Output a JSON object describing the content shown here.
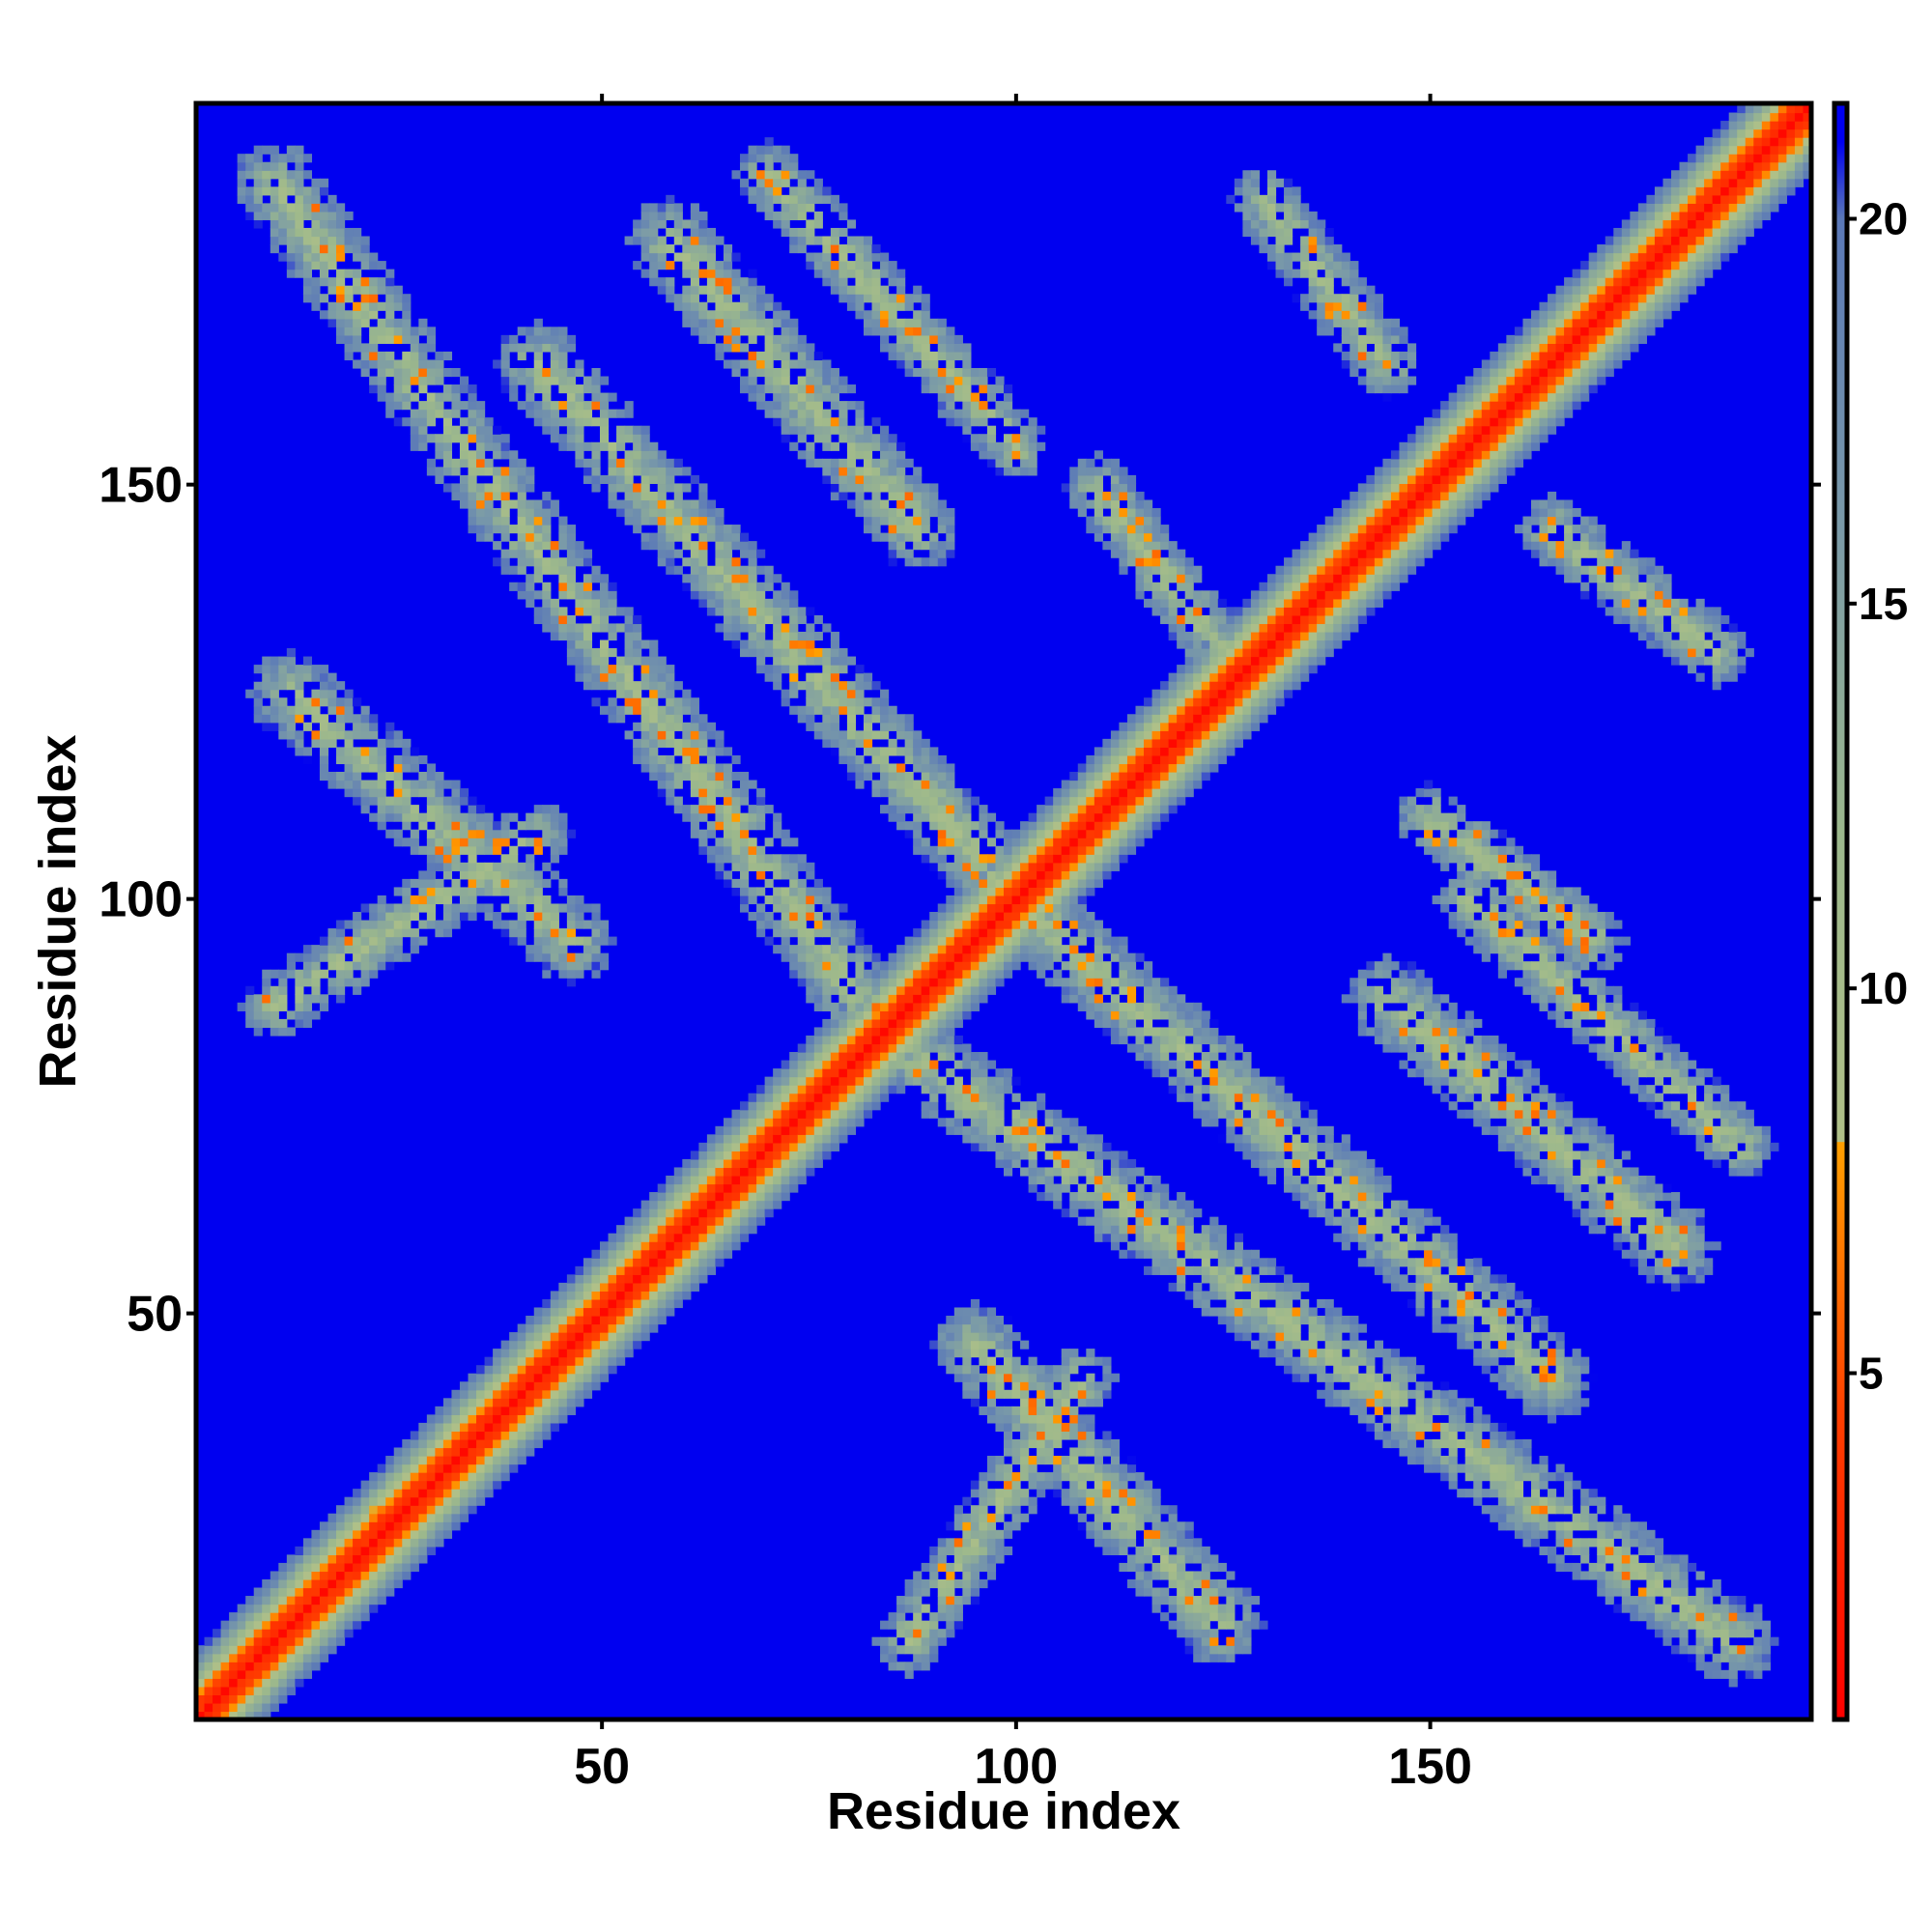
{
  "chart_data": {
    "type": "heatmap",
    "title": "",
    "xlabel": "Residue index",
    "ylabel": "Residue index",
    "n_residues": 196,
    "xlim": [
      1,
      196
    ],
    "ylim": [
      1,
      196
    ],
    "x_ticks": [
      50,
      100,
      150
    ],
    "y_ticks": [
      50,
      100,
      150
    ],
    "colorbar": {
      "range": [
        0.5,
        21.5
      ],
      "ticks": [
        5,
        10,
        15,
        20
      ],
      "stops": [
        {
          "value": 0.5,
          "color": "#ff0000"
        },
        {
          "value": 4.5,
          "color": "#ff4000"
        },
        {
          "value": 8.0,
          "color": "#ffa000"
        },
        {
          "value": 8.01,
          "color": "#b0c088"
        },
        {
          "value": 12.0,
          "color": "#9cb88c"
        },
        {
          "value": 16.0,
          "color": "#7a9aa8"
        },
        {
          "value": 20.0,
          "color": "#5a78b8"
        },
        {
          "value": 21.0,
          "color": "#0000f0"
        }
      ]
    },
    "background_color": "#0000f0",
    "diagonal": {
      "description_values": {
        "center": 1.5,
        "near": 4.0,
        "band_halfwidth_residues": 8
      }
    },
    "contact_bands": [
      {
        "orientation": "anti",
        "from": [
          10,
          187
        ],
        "to": [
          83,
          85
        ],
        "halfwidth": 5
      },
      {
        "orientation": "anti",
        "from": [
          85,
          83
        ],
        "to": [
          187,
          10
        ],
        "halfwidth": 5
      },
      {
        "orientation": "anti",
        "from": [
          12,
          125
        ],
        "to": [
          46,
          95
        ],
        "halfwidth": 5
      },
      {
        "orientation": "anti",
        "from": [
          95,
          46
        ],
        "to": [
          125,
          12
        ],
        "halfwidth": 5
      },
      {
        "orientation": "anti",
        "from": [
          42,
          165
        ],
        "to": [
          100,
          100
        ],
        "halfwidth": 5
      },
      {
        "orientation": "anti",
        "from": [
          100,
          100
        ],
        "to": [
          165,
          42
        ],
        "halfwidth": 5
      },
      {
        "orientation": "par",
        "from": [
          58,
          180
        ],
        "to": [
          88,
          145
        ],
        "halfwidth": 5
      },
      {
        "orientation": "par",
        "from": [
          145,
          88
        ],
        "to": [
          180,
          58
        ],
        "halfwidth": 5
      },
      {
        "orientation": "par",
        "from": [
          10,
          87
        ],
        "to": [
          42,
          108
        ],
        "halfwidth": 4
      },
      {
        "orientation": "par",
        "from": [
          87,
          10
        ],
        "to": [
          108,
          42
        ],
        "halfwidth": 4
      },
      {
        "orientation": "par",
        "from": [
          70,
          188
        ],
        "to": [
          100,
          155
        ],
        "halfwidth": 4
      },
      {
        "orientation": "par",
        "from": [
          155,
          100
        ],
        "to": [
          188,
          70
        ],
        "halfwidth": 4
      },
      {
        "orientation": "par",
        "from": [
          130,
          185
        ],
        "to": [
          145,
          165
        ],
        "halfwidth": 4
      },
      {
        "orientation": "par",
        "from": [
          165,
          145
        ],
        "to": [
          185,
          130
        ],
        "halfwidth": 4
      },
      {
        "orientation": "par",
        "from": [
          110,
          150
        ],
        "to": [
          125,
          130
        ],
        "halfwidth": 4
      },
      {
        "orientation": "par",
        "from": [
          150,
          110
        ],
        "to": [
          170,
          95
        ],
        "halfwidth": 4
      }
    ]
  }
}
